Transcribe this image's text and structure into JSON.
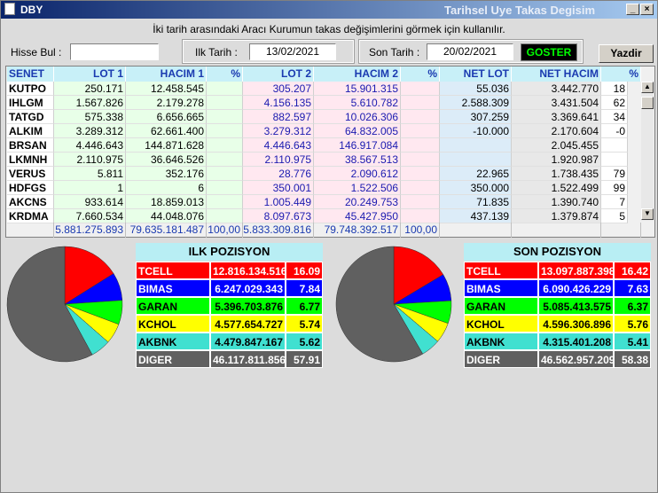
{
  "window": {
    "title": "DBY",
    "caption": "Tarihsel Uye Takas Degisim"
  },
  "instruction": "İki tarih arasındaki  Aracı Kurumun takas değişimlerini görmek için kullanılır.",
  "toolbar": {
    "search_label": "Hisse Bul :",
    "first_date_label": "Ilk Tarih :",
    "first_date": "13/02/2021",
    "last_date_label": "Son Tarih :",
    "last_date": "20/02/2021",
    "show_button": "GOSTER",
    "print_button": "Yazdir"
  },
  "table": {
    "columns": [
      "SENET",
      "LOT 1",
      "HACIM 1",
      "%",
      "LOT 2",
      "HACIM 2",
      "%",
      "NET LOT",
      "NET HACIM",
      "%"
    ],
    "rows": [
      [
        "KUTPO",
        "250.171",
        "12.458.545",
        null,
        "305.207",
        "15.901.315",
        null,
        "55.036",
        "3.442.770",
        "18"
      ],
      [
        "IHLGM",
        "1.567.826",
        "2.179.278",
        null,
        "4.156.135",
        "5.610.782",
        null,
        "2.588.309",
        "3.431.504",
        "62"
      ],
      [
        "TATGD",
        "575.338",
        "6.656.665",
        null,
        "882.597",
        "10.026.306",
        null,
        "307.259",
        "3.369.641",
        "34"
      ],
      [
        "ALKIM",
        "3.289.312",
        "62.661.400",
        null,
        "3.279.312",
        "64.832.005",
        null,
        "-10.000",
        "2.170.604",
        "-0"
      ],
      [
        "BRSAN",
        "4.446.643",
        "144.871.628",
        null,
        "4.446.643",
        "146.917.084",
        null,
        null,
        "2.045.455",
        null
      ],
      [
        "LKMNH",
        "2.110.975",
        "36.646.526",
        null,
        "2.110.975",
        "38.567.513",
        null,
        null,
        "1.920.987",
        null
      ],
      [
        "VERUS",
        "5.811",
        "352.176",
        null,
        "28.776",
        "2.090.612",
        null,
        "22.965",
        "1.738.435",
        "79"
      ],
      [
        "HDFGS",
        "1",
        "6",
        null,
        "350.001",
        "1.522.506",
        null,
        "350.000",
        "1.522.499",
        "99"
      ],
      [
        "AKCNS",
        "933.614",
        "18.859.013",
        null,
        "1.005.449",
        "20.249.753",
        null,
        "71.835",
        "1.390.740",
        "7"
      ],
      [
        "KRDMA",
        "7.660.534",
        "44.048.076",
        null,
        "8.097.673",
        "45.427.950",
        null,
        "437.139",
        "1.379.874",
        "5"
      ]
    ],
    "totals": [
      null,
      "5.881.275.893",
      "79.635.181.487",
      "100,00",
      "5.833.309.816",
      "79.748.392.517",
      "100,00",
      null,
      null,
      null
    ]
  },
  "positions": [
    {
      "title": "ILK POZISYON",
      "items": [
        {
          "name": "TCELL",
          "amount": "12.816.134.516",
          "pct": 16.09,
          "color": "#ff0000"
        },
        {
          "name": "BIMAS",
          "amount": "6.247.029.343",
          "pct": 7.84,
          "color": "#0000ff"
        },
        {
          "name": "GARAN",
          "amount": "5.396.703.876",
          "pct": 6.77,
          "color": "#00ff00"
        },
        {
          "name": "KCHOL",
          "amount": "4.577.654.727",
          "pct": 5.74,
          "color": "#ffff00"
        },
        {
          "name": "AKBNK",
          "amount": "4.479.847.167",
          "pct": 5.62,
          "color": "#40e0d0"
        },
        {
          "name": "DIGER",
          "amount": "46.117.811.856",
          "pct": 57.91,
          "color": "#606060"
        }
      ]
    },
    {
      "title": "SON POZISYON",
      "items": [
        {
          "name": "TCELL",
          "amount": "13.097.887.398",
          "pct": 16.42,
          "color": "#ff0000"
        },
        {
          "name": "BIMAS",
          "amount": "6.090.426.229",
          "pct": 7.63,
          "color": "#0000ff"
        },
        {
          "name": "GARAN",
          "amount": "5.085.413.575",
          "pct": 6.37,
          "color": "#00ff00"
        },
        {
          "name": "KCHOL",
          "amount": "4.596.306.896",
          "pct": 5.76,
          "color": "#ffff00"
        },
        {
          "name": "AKBNK",
          "amount": "4.315.401.208",
          "pct": 5.41,
          "color": "#40e0d0"
        },
        {
          "name": "DIGER",
          "amount": "46.562.957.209",
          "pct": 58.38,
          "color": "#606060"
        }
      ]
    }
  ]
}
